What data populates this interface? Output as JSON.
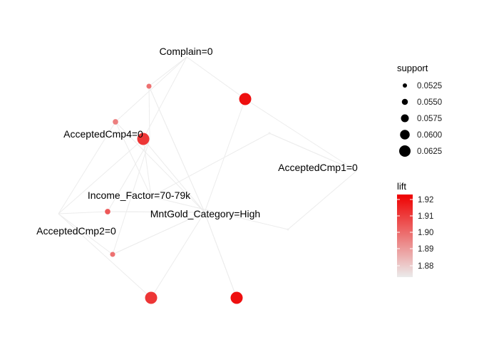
{
  "graph": {
    "item_nodes": [
      {
        "id": "complain",
        "label": "Complain=0"
      },
      {
        "id": "acc4",
        "label": "AcceptedCmp4=0"
      },
      {
        "id": "acc1",
        "label": "AcceptedCmp1=0"
      },
      {
        "id": "income",
        "label": "Income_Factor=70-79k"
      },
      {
        "id": "gold",
        "label": "MntGold_Category=High"
      },
      {
        "id": "acc2",
        "label": "AcceptedCmp2=0"
      }
    ],
    "rule_nodes": [
      {
        "id": "r1",
        "support": 0.0535,
        "lift": 1.9
      },
      {
        "id": "r2",
        "support": 0.0625,
        "lift": 1.92
      },
      {
        "id": "r3",
        "support": 0.054,
        "lift": 1.897
      },
      {
        "id": "r4",
        "support": 0.0625,
        "lift": 1.912
      },
      {
        "id": "r5",
        "support": 0.054,
        "lift": 1.905
      },
      {
        "id": "r6",
        "support": 0.0535,
        "lift": 1.9
      },
      {
        "id": "r7",
        "support": 0.0625,
        "lift": 1.912
      },
      {
        "id": "r8",
        "support": 0.0625,
        "lift": 1.92
      },
      {
        "id": "r9",
        "support": 0.05,
        "lift": 1.875
      },
      {
        "id": "r10",
        "support": 0.05,
        "lift": 1.875
      }
    ]
  },
  "legend": {
    "support": {
      "title": "support",
      "values": [
        0.0525,
        0.055,
        0.0575,
        0.06,
        0.0625
      ],
      "labels": [
        "0.0525",
        "0.0550",
        "0.0575",
        "0.0600",
        "0.0625"
      ]
    },
    "lift": {
      "title": "lift",
      "labels": [
        "1.92",
        "1.91",
        "1.90",
        "1.89",
        "1.88"
      ],
      "range": [
        1.875,
        1.923
      ],
      "color_low": "#ebebeb",
      "color_high": "#ee0000"
    }
  }
}
